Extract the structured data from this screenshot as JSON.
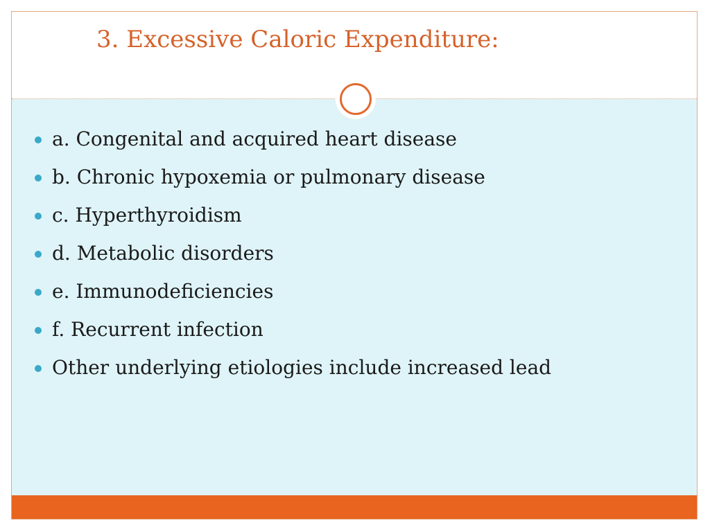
{
  "slide": {
    "title": "3. Excessive Caloric Expenditure:",
    "bullets": [
      "a. Congenital and acquired heart disease",
      "b. Chronic hypoxemia or pulmonary disease",
      "c. Hyperthyroidism",
      "d. Metabolic disorders",
      "e. Immunоdeficiencies",
      "f. Recurrent infection",
      "Other underlying etiologies include increased lead"
    ]
  },
  "colors": {
    "title": "#d5622b",
    "accent_bar": "#e8641f",
    "body_background": "#dff4f8",
    "bullet_dot": "#3aa8c9",
    "border": "#e5a882"
  }
}
